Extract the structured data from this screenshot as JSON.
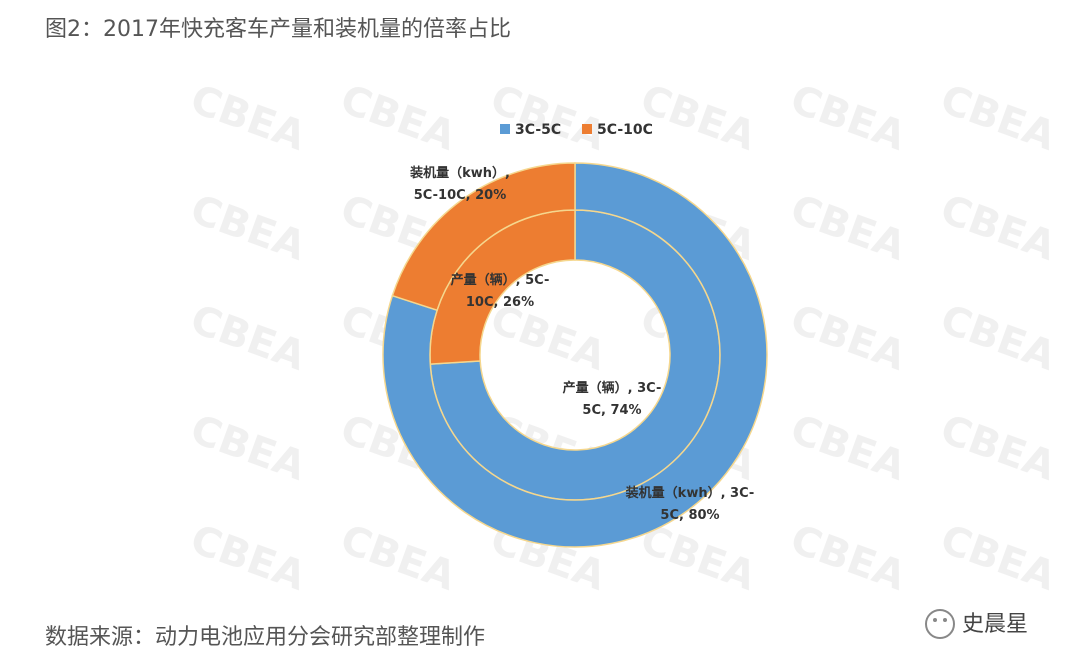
{
  "chart_data": {
    "type": "donut",
    "title": "图2：2017年快充客车产量和装机量的倍率占比",
    "source": "数据来源：动力电池应用分会研究部整理制作",
    "watermark": "CBEA",
    "brand": "史晨星",
    "categories": [
      "3C-5C",
      "5C-10C"
    ],
    "colors": [
      "#5b9bd5",
      "#ed7d31"
    ],
    "legend": "top",
    "series": [
      {
        "name": "产量（辆）",
        "values": [
          74,
          26
        ],
        "value_labels": [
          "产量（辆）, 3C-5C, 74%",
          "产量（辆）, 5C-10C, 26%"
        ]
      },
      {
        "name": "装机量（kwh）",
        "values": [
          80,
          20
        ],
        "value_labels": [
          "装机量（kwh）, 3C-5C, 80%",
          "装机量（kwh）, 5C-10C, 20%"
        ]
      }
    ]
  }
}
